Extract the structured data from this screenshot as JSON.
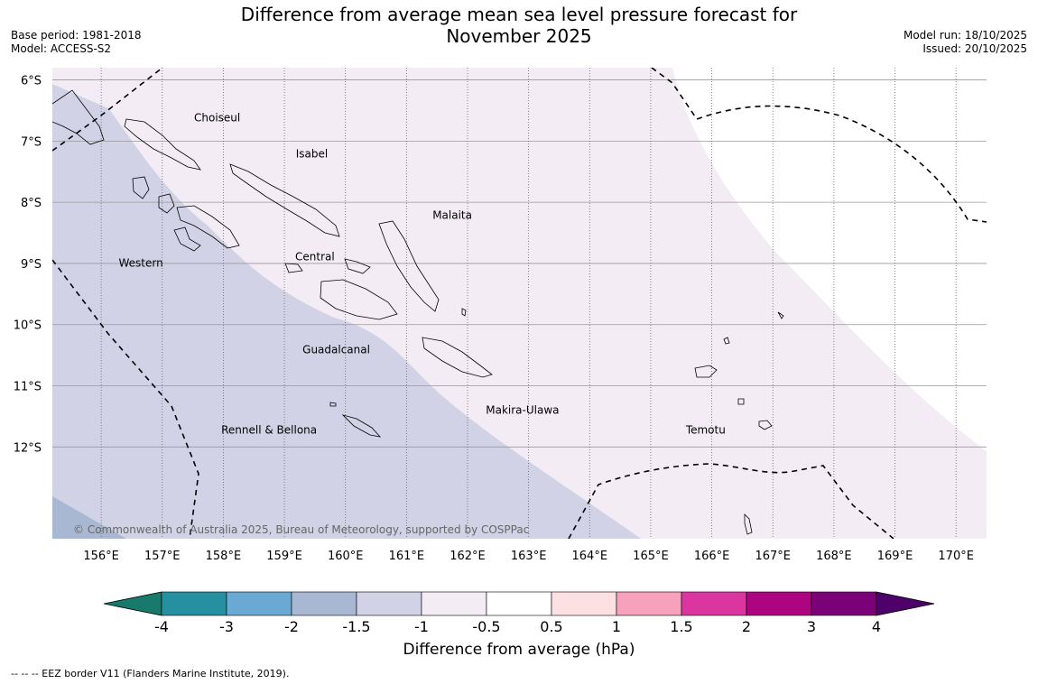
{
  "title": {
    "line1": "Difference from average mean sea level pressure forecast for",
    "line2": "November 2025"
  },
  "meta": {
    "base_period": "Base period: 1981-2018",
    "model": "Model: ACCESS-S2",
    "model_run": "Model run: 18/10/2025",
    "issued": "Issued: 20/10/2025"
  },
  "map": {
    "lat_labels": [
      "6°S",
      "7°S",
      "8°S",
      "9°S",
      "10°S",
      "11°S",
      "12°S"
    ],
    "lat_values": [
      6,
      7,
      8,
      9,
      10,
      11,
      12
    ],
    "lon_labels": [
      "156°E",
      "157°E",
      "158°E",
      "159°E",
      "160°E",
      "161°E",
      "162°E",
      "163°E",
      "164°E",
      "165°E",
      "166°E",
      "167°E",
      "168°E",
      "169°E",
      "170°E"
    ],
    "lon_values": [
      156,
      157,
      158,
      159,
      160,
      161,
      162,
      163,
      164,
      165,
      166,
      167,
      168,
      169,
      170
    ],
    "extent": {
      "lon_min": 155.2,
      "lon_max": 170.5,
      "lat_min": 5.8,
      "lat_max": 13.5
    },
    "regions": [
      {
        "name": "Choiseul",
        "lon": 157.9,
        "lat": 6.62
      },
      {
        "name": "Isabel",
        "lon": 159.45,
        "lat": 7.21
      },
      {
        "name": "Malaita",
        "lon": 161.75,
        "lat": 8.21
      },
      {
        "name": "Western",
        "lon": 156.65,
        "lat": 8.99
      },
      {
        "name": "Central",
        "lon": 159.5,
        "lat": 8.89
      },
      {
        "name": "Guadalcanal",
        "lon": 159.85,
        "lat": 10.41
      },
      {
        "name": "Makira-Ulawa",
        "lon": 162.9,
        "lat": 11.4
      },
      {
        "name": "Temotu",
        "lon": 165.9,
        "lat": 11.72
      },
      {
        "name": "Rennell & Bellona",
        "lon": 158.75,
        "lat": 11.72
      }
    ],
    "copyright": "© Commonwealth of Australia 2025, Bureau of Meteorology, supported by COSPPac"
  },
  "colorbar": {
    "title": "Difference from average (hPa)",
    "ticks": [
      "-4",
      "-3",
      "-2",
      "-1.5",
      "-1",
      "-0.5",
      "0.5",
      "1",
      "1.5",
      "2",
      "3",
      "4"
    ],
    "colors": [
      "#177a6c",
      "#2590a0",
      "#6aa9d3",
      "#a8b8d3",
      "#d1d2e6",
      "#f3ecf5",
      "#ffffff",
      "#fde0e1",
      "#f7a1bd",
      "#db35a0",
      "#ad0481",
      "#7a0177",
      "#4e016a"
    ]
  },
  "footnote": "--  --  -- EEZ border V11 (Flanders Marine Institute, 2019)."
}
